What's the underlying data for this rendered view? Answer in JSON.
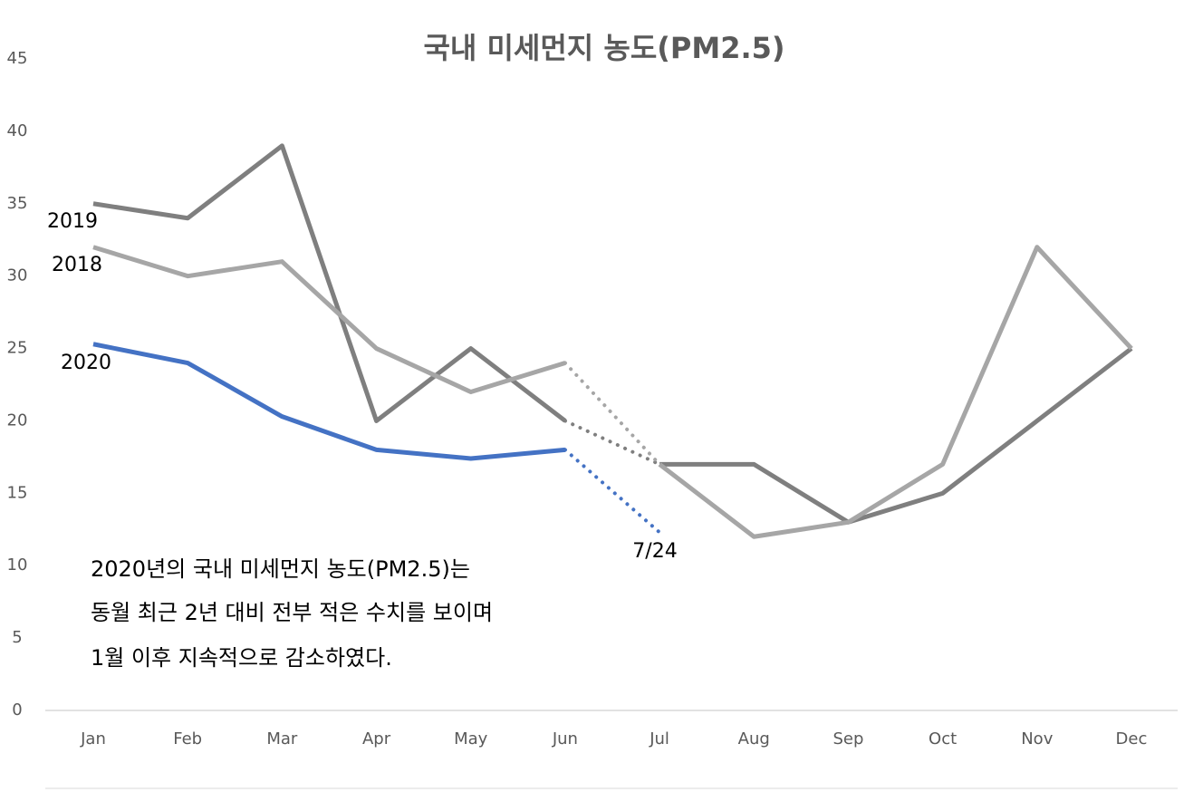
{
  "chart_data": {
    "type": "line",
    "title": "국내 미세먼지 농도(PM2.5)",
    "categories": [
      "Jan",
      "Feb",
      "Mar",
      "Apr",
      "May",
      "Jun",
      "Jul",
      "Aug",
      "Sep",
      "Oct",
      "Nov",
      "Dec"
    ],
    "series": [
      {
        "name": "2019",
        "color": "#7f7f7f",
        "values": [
          35,
          34,
          39,
          20,
          25,
          20,
          17,
          17,
          13,
          15,
          20,
          25
        ],
        "dotted_segment": [
          5,
          6
        ]
      },
      {
        "name": "2018",
        "color": "#a6a6a6",
        "values": [
          32,
          30,
          31,
          25,
          22,
          24,
          17,
          12,
          13,
          17,
          32,
          25
        ],
        "dotted_segment": [
          5,
          6
        ]
      },
      {
        "name": "2020",
        "color": "#4472c4",
        "values": [
          25.3,
          24,
          20.3,
          18,
          17.4,
          18,
          12.3,
          null,
          null,
          null,
          null,
          null
        ],
        "dotted_segment": [
          5,
          6
        ]
      }
    ],
    "annotations": [
      "7/24",
      "2020년의 국내 미세먼지 농도(PM2.5)는",
      "동월 최근 2년 대비 전부 적은 수치를 보이며",
      "1월 이후 지속적으로 감소하였다."
    ],
    "ylim": [
      0,
      45
    ],
    "yticks": [
      0,
      5,
      10,
      15,
      20,
      25,
      30,
      35,
      40,
      45
    ],
    "grid": false
  }
}
